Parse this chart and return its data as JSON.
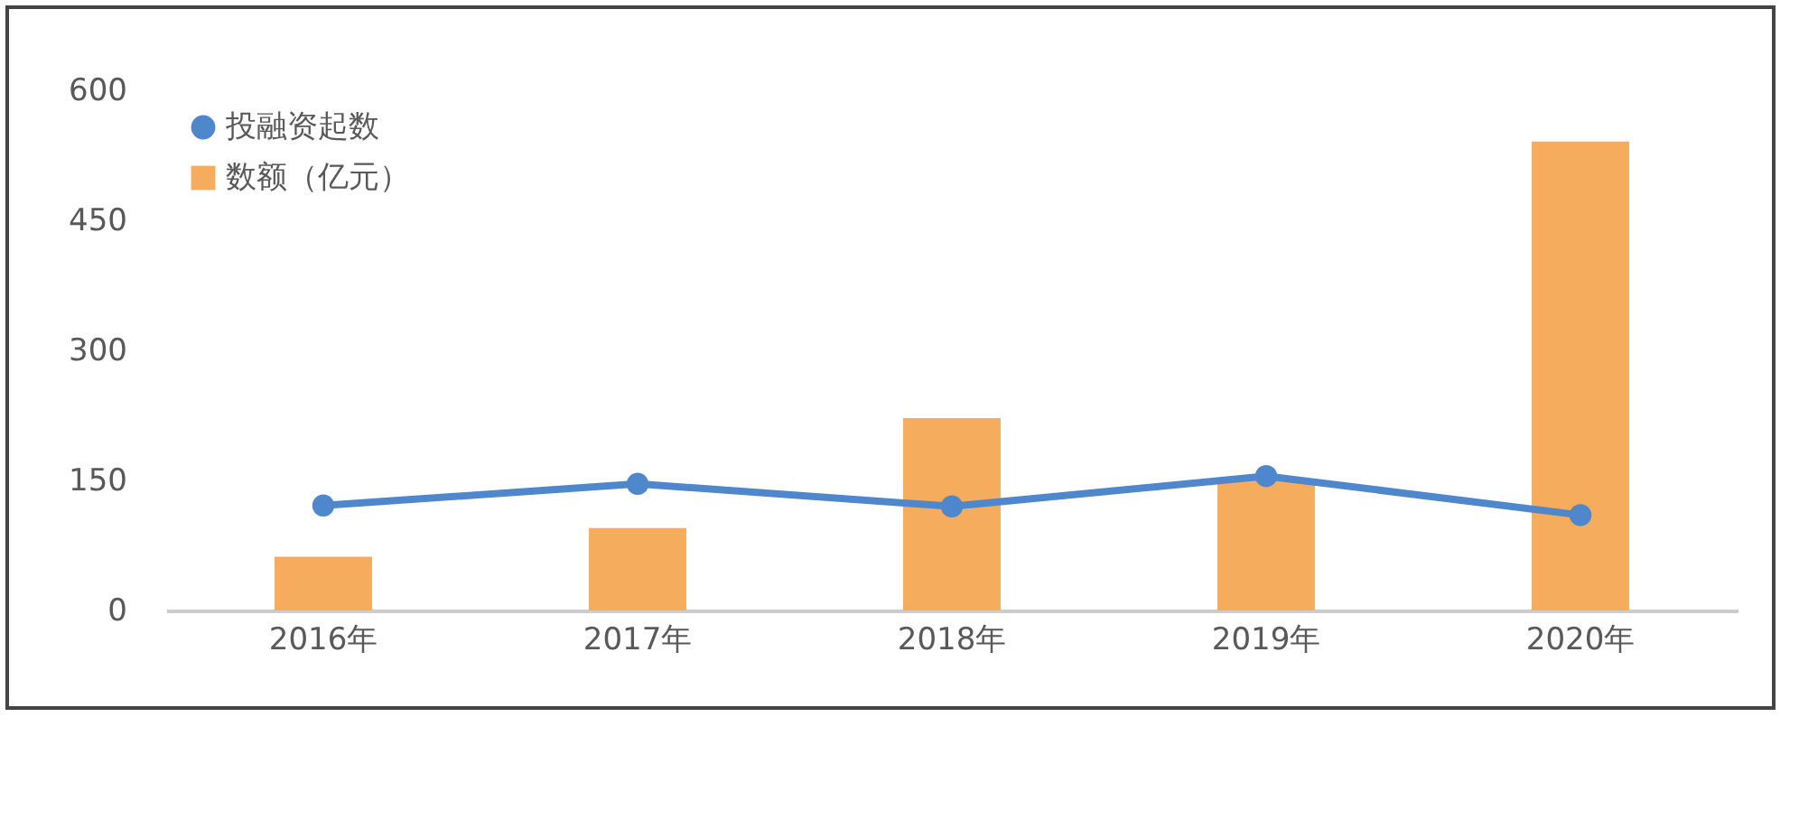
{
  "chart_data": {
    "type": "bar",
    "categories": [
      "2016年",
      "2017年",
      "2018年",
      "2019年",
      "2020年"
    ],
    "series": [
      {
        "name": "投融资起数",
        "type": "line",
        "color": "#4f87cc",
        "values": [
          121,
          146,
          120,
          155,
          110
        ]
      },
      {
        "name": "数额（亿元）",
        "color": "#f5ac5c",
        "values": [
          62,
          95,
          222,
          150,
          541
        ]
      }
    ],
    "ylim": [
      0,
      600
    ],
    "yticks": [
      0,
      150,
      300,
      450,
      600
    ],
    "legend": "top left",
    "marker": "circle",
    "line_style": "solid"
  }
}
